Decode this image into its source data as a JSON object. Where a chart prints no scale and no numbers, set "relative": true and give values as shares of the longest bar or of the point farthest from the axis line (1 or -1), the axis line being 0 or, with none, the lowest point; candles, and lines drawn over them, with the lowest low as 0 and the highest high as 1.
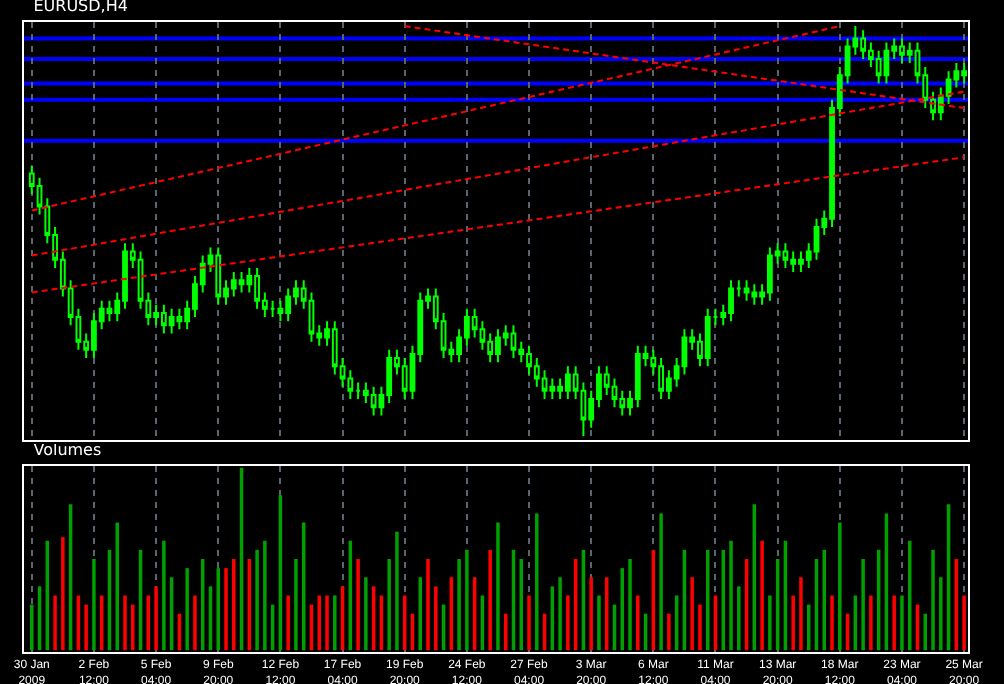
{
  "chart_data": [
    {
      "type": "candlestick",
      "title": "EURUSD,H4",
      "relative": true,
      "grid": "x",
      "tick_labels": false,
      "color": "#00ff00",
      "categories": [
        "30 Jan 2009",
        null,
        null,
        null,
        null,
        null,
        null,
        null,
        "2 Feb 12:00",
        null,
        null,
        null,
        null,
        null,
        null,
        null,
        "5 Feb 04:00",
        null,
        null,
        null,
        null,
        null,
        null,
        null,
        "9 Feb 20:00",
        null,
        null,
        null,
        null,
        null,
        null,
        null,
        "12 Feb 12:00",
        null,
        null,
        null,
        null,
        null,
        null,
        null,
        "17 Feb 04:00",
        null,
        null,
        null,
        null,
        null,
        null,
        null,
        "19 Feb 20:00",
        null,
        null,
        null,
        null,
        null,
        null,
        null,
        "24 Feb 12:00",
        null,
        null,
        null,
        null,
        null,
        null,
        null,
        "27 Feb 04:00",
        null,
        null,
        null,
        null,
        null,
        null,
        null,
        "3 Mar 20:00",
        null,
        null,
        null,
        null,
        null,
        null,
        null,
        "6 Mar 12:00",
        null,
        null,
        null,
        null,
        null,
        null,
        null,
        "11 Mar 04:00",
        null,
        null,
        null,
        null,
        null,
        null,
        null,
        "13 Mar 20:00",
        null,
        null,
        null,
        null,
        null,
        null,
        null,
        "18 Mar 12:00",
        null,
        null,
        null,
        null,
        null,
        null,
        null,
        "23 Mar 04:00",
        null,
        null,
        null,
        null,
        null,
        null,
        null,
        "25 Mar 20:00"
      ],
      "ohlc": [
        [
          0.64,
          0.66,
          0.59,
          0.61
        ],
        [
          0.61,
          0.63,
          0.54,
          0.56
        ],
        [
          0.56,
          0.58,
          0.47,
          0.49
        ],
        [
          0.49,
          0.51,
          0.41,
          0.43
        ],
        [
          0.43,
          0.45,
          0.34,
          0.36
        ],
        [
          0.36,
          0.38,
          0.27,
          0.29
        ],
        [
          0.29,
          0.31,
          0.21,
          0.23
        ],
        [
          0.23,
          0.25,
          0.19,
          0.21
        ],
        [
          0.21,
          0.3,
          0.19,
          0.28
        ],
        [
          0.28,
          0.33,
          0.26,
          0.31
        ],
        [
          0.31,
          0.33,
          0.28,
          0.3
        ],
        [
          0.3,
          0.35,
          0.28,
          0.33
        ],
        [
          0.33,
          0.47,
          0.31,
          0.45
        ],
        [
          0.45,
          0.47,
          0.41,
          0.43
        ],
        [
          0.43,
          0.45,
          0.31,
          0.33
        ],
        [
          0.33,
          0.35,
          0.27,
          0.29
        ],
        [
          0.29,
          0.32,
          0.27,
          0.3
        ],
        [
          0.3,
          0.32,
          0.25,
          0.27
        ],
        [
          0.27,
          0.31,
          0.25,
          0.29
        ],
        [
          0.29,
          0.31,
          0.26,
          0.28
        ],
        [
          0.28,
          0.33,
          0.26,
          0.31
        ],
        [
          0.31,
          0.39,
          0.29,
          0.37
        ],
        [
          0.37,
          0.44,
          0.35,
          0.42
        ],
        [
          0.42,
          0.46,
          0.4,
          0.44
        ],
        [
          0.44,
          0.46,
          0.32,
          0.34
        ],
        [
          0.34,
          0.38,
          0.32,
          0.36
        ],
        [
          0.36,
          0.4,
          0.34,
          0.38
        ],
        [
          0.38,
          0.4,
          0.35,
          0.37
        ],
        [
          0.37,
          0.41,
          0.35,
          0.39
        ],
        [
          0.39,
          0.41,
          0.31,
          0.33
        ],
        [
          0.33,
          0.35,
          0.29,
          0.31
        ],
        [
          0.31,
          0.33,
          0.29,
          0.31
        ],
        [
          0.31,
          0.33,
          0.28,
          0.3
        ],
        [
          0.3,
          0.36,
          0.28,
          0.34
        ],
        [
          0.34,
          0.38,
          0.32,
          0.36
        ],
        [
          0.36,
          0.38,
          0.31,
          0.33
        ],
        [
          0.33,
          0.35,
          0.23,
          0.25
        ],
        [
          0.25,
          0.27,
          0.22,
          0.24
        ],
        [
          0.24,
          0.28,
          0.22,
          0.26
        ],
        [
          0.26,
          0.28,
          0.15,
          0.17
        ],
        [
          0.17,
          0.19,
          0.12,
          0.14
        ],
        [
          0.14,
          0.16,
          0.09,
          0.11
        ],
        [
          0.11,
          0.13,
          0.09,
          0.11
        ],
        [
          0.11,
          0.13,
          0.08,
          0.1
        ],
        [
          0.1,
          0.12,
          0.05,
          0.07
        ],
        [
          0.07,
          0.12,
          0.05,
          0.1
        ],
        [
          0.1,
          0.21,
          0.08,
          0.19
        ],
        [
          0.19,
          0.21,
          0.15,
          0.17
        ],
        [
          0.17,
          0.19,
          0.09,
          0.11
        ],
        [
          0.11,
          0.22,
          0.09,
          0.2
        ],
        [
          0.2,
          0.35,
          0.18,
          0.33
        ],
        [
          0.33,
          0.36,
          0.31,
          0.34
        ],
        [
          0.34,
          0.36,
          0.26,
          0.28
        ],
        [
          0.28,
          0.3,
          0.19,
          0.21
        ],
        [
          0.21,
          0.23,
          0.18,
          0.2
        ],
        [
          0.2,
          0.26,
          0.18,
          0.24
        ],
        [
          0.24,
          0.31,
          0.22,
          0.29
        ],
        [
          0.29,
          0.31,
          0.24,
          0.26
        ],
        [
          0.26,
          0.28,
          0.21,
          0.23
        ],
        [
          0.23,
          0.25,
          0.18,
          0.2
        ],
        [
          0.2,
          0.26,
          0.18,
          0.24
        ],
        [
          0.24,
          0.27,
          0.22,
          0.25
        ],
        [
          0.25,
          0.27,
          0.19,
          0.21
        ],
        [
          0.21,
          0.23,
          0.18,
          0.2
        ],
        [
          0.2,
          0.22,
          0.15,
          0.17
        ],
        [
          0.17,
          0.19,
          0.12,
          0.14
        ],
        [
          0.14,
          0.16,
          0.09,
          0.11
        ],
        [
          0.11,
          0.14,
          0.09,
          0.12
        ],
        [
          0.12,
          0.14,
          0.09,
          0.11
        ],
        [
          0.11,
          0.17,
          0.09,
          0.15
        ],
        [
          0.15,
          0.17,
          0.09,
          0.11
        ],
        [
          0.11,
          0.13,
          0.0,
          0.04
        ],
        [
          0.04,
          0.11,
          0.02,
          0.09
        ],
        [
          0.09,
          0.17,
          0.07,
          0.15
        ],
        [
          0.15,
          0.17,
          0.1,
          0.12
        ],
        [
          0.12,
          0.14,
          0.07,
          0.09
        ],
        [
          0.09,
          0.11,
          0.05,
          0.07
        ],
        [
          0.07,
          0.11,
          0.05,
          0.09
        ],
        [
          0.09,
          0.22,
          0.07,
          0.2
        ],
        [
          0.2,
          0.22,
          0.17,
          0.19
        ],
        [
          0.19,
          0.21,
          0.15,
          0.17
        ],
        [
          0.17,
          0.19,
          0.09,
          0.11
        ],
        [
          0.11,
          0.16,
          0.09,
          0.14
        ],
        [
          0.14,
          0.19,
          0.12,
          0.17
        ],
        [
          0.17,
          0.26,
          0.15,
          0.24
        ],
        [
          0.24,
          0.26,
          0.21,
          0.23
        ],
        [
          0.23,
          0.25,
          0.17,
          0.19
        ],
        [
          0.19,
          0.31,
          0.17,
          0.29
        ],
        [
          0.29,
          0.31,
          0.27,
          0.29
        ],
        [
          0.29,
          0.32,
          0.27,
          0.3
        ],
        [
          0.3,
          0.38,
          0.28,
          0.36
        ],
        [
          0.36,
          0.38,
          0.34,
          0.36
        ],
        [
          0.36,
          0.38,
          0.33,
          0.35
        ],
        [
          0.35,
          0.37,
          0.32,
          0.34
        ],
        [
          0.34,
          0.37,
          0.32,
          0.35
        ],
        [
          0.35,
          0.46,
          0.33,
          0.44
        ],
        [
          0.44,
          0.47,
          0.42,
          0.45
        ],
        [
          0.45,
          0.47,
          0.41,
          0.43
        ],
        [
          0.43,
          0.45,
          0.4,
          0.42
        ],
        [
          0.42,
          0.45,
          0.4,
          0.43
        ],
        [
          0.43,
          0.47,
          0.41,
          0.45
        ],
        [
          0.45,
          0.53,
          0.43,
          0.51
        ],
        [
          0.51,
          0.55,
          0.49,
          0.53
        ],
        [
          0.53,
          0.82,
          0.51,
          0.8
        ],
        [
          0.8,
          0.9,
          0.78,
          0.88
        ],
        [
          0.88,
          0.97,
          0.86,
          0.95
        ],
        [
          0.95,
          1.0,
          0.93,
          0.97
        ],
        [
          0.97,
          0.99,
          0.92,
          0.94
        ],
        [
          0.94,
          0.96,
          0.9,
          0.92
        ],
        [
          0.92,
          0.94,
          0.86,
          0.88
        ],
        [
          0.88,
          0.96,
          0.86,
          0.94
        ],
        [
          0.94,
          0.97,
          0.92,
          0.95
        ],
        [
          0.95,
          0.97,
          0.91,
          0.93
        ],
        [
          0.93,
          0.96,
          0.91,
          0.94
        ],
        [
          0.94,
          0.96,
          0.86,
          0.88
        ],
        [
          0.88,
          0.9,
          0.8,
          0.82
        ],
        [
          0.82,
          0.84,
          0.77,
          0.79
        ],
        [
          0.79,
          0.85,
          0.77,
          0.83
        ],
        [
          0.83,
          0.89,
          0.81,
          0.87
        ],
        [
          0.87,
          0.91,
          0.85,
          0.89
        ],
        [
          0.89,
          0.91,
          0.86,
          0.88
        ]
      ],
      "series": [
        {
          "type": "line",
          "color": "#ff0000",
          "line_style": "dashed",
          "x": [
            "19 Feb 20:00",
            "25 Mar 20:00"
          ],
          "values": [
            1.0,
            0.8
          ]
        },
        {
          "type": "line",
          "color": "#ff0000",
          "line_style": "dashed",
          "x": [
            "30 Jan 2009",
            "18 Mar 12:00"
          ],
          "values": [
            0.55,
            1.0
          ]
        },
        {
          "type": "line",
          "color": "#ff0000",
          "line_style": "dashed",
          "x": [
            "30 Jan 2009",
            "25 Mar 20:00"
          ],
          "values": [
            0.35,
            0.68
          ]
        },
        {
          "type": "line",
          "color": "#ff0000",
          "line_style": "dashed",
          "x": [
            "30 Jan 2009",
            "25 Mar 20:00"
          ],
          "values": [
            0.44,
            0.84
          ]
        }
      ],
      "ref_lines": [
        {
          "axis": "y",
          "value": 0.97,
          "color": "#0000ff"
        },
        {
          "axis": "y",
          "value": 0.92,
          "color": "#0000ff"
        },
        {
          "axis": "y",
          "value": 0.86,
          "color": "#0000ff"
        },
        {
          "axis": "y",
          "value": 0.82,
          "color": "#0000ff"
        },
        {
          "axis": "y",
          "value": 0.72,
          "color": "#0000ff"
        }
      ]
    },
    {
      "type": "bar",
      "title": "Volumes",
      "relative": true,
      "grid": "x",
      "categories": [
        "30 Jan 2009",
        null,
        null,
        null,
        null,
        null,
        null,
        null,
        "2 Feb 12:00",
        null,
        null,
        null,
        null,
        null,
        null,
        null,
        "5 Feb 04:00",
        null,
        null,
        null,
        null,
        null,
        null,
        null,
        "9 Feb 20:00",
        null,
        null,
        null,
        null,
        null,
        null,
        null,
        "12 Feb 12:00",
        null,
        null,
        null,
        null,
        null,
        null,
        null,
        "17 Feb 04:00",
        null,
        null,
        null,
        null,
        null,
        null,
        null,
        "19 Feb 20:00",
        null,
        null,
        null,
        null,
        null,
        null,
        null,
        "24 Feb 12:00",
        null,
        null,
        null,
        null,
        null,
        null,
        null,
        "27 Feb 04:00",
        null,
        null,
        null,
        null,
        null,
        null,
        null,
        "3 Mar 20:00",
        null,
        null,
        null,
        null,
        null,
        null,
        null,
        "6 Mar 12:00",
        null,
        null,
        null,
        null,
        null,
        null,
        null,
        "11 Mar 04:00",
        null,
        null,
        null,
        null,
        null,
        null,
        null,
        "13 Mar 20:00",
        null,
        null,
        null,
        null,
        null,
        null,
        null,
        "18 Mar 12:00",
        null,
        null,
        null,
        null,
        null,
        null,
        null,
        "23 Mar 04:00",
        null,
        null,
        null,
        null,
        null,
        null,
        null,
        "25 Mar 20:00"
      ],
      "values": [
        0.25,
        0.35,
        0.6,
        0.3,
        0.62,
        0.8,
        0.3,
        0.25,
        0.5,
        0.3,
        0.55,
        0.7,
        0.3,
        0.25,
        0.55,
        0.3,
        0.35,
        0.6,
        0.4,
        0.2,
        0.45,
        0.3,
        0.5,
        0.35,
        0.45,
        0.45,
        0.5,
        1,
        0.5,
        0.55,
        0.6,
        0.25,
        0.85,
        0.3,
        0.5,
        0.7,
        0.25,
        0.3,
        0.3,
        0.3,
        0.35,
        0.6,
        0.5,
        0.4,
        0.35,
        0.3,
        0.5,
        0.65,
        0.3,
        0.2,
        0.4,
        0.5,
        0.35,
        0.25,
        0.4,
        0.5,
        0.55,
        0.4,
        0.3,
        0.55,
        0.7,
        0.2,
        0.55,
        0.5,
        0.3,
        0.75,
        0.2,
        0.35,
        0.4,
        0.3,
        0.5,
        0.55,
        0.4,
        0.3,
        0.4,
        0.25,
        0.45,
        0.5,
        0.3,
        0.2,
        0.55,
        0.75,
        0.2,
        0.3,
        0.55,
        0.4,
        0.25,
        0.55,
        0.3,
        0.55,
        0.6,
        0.35,
        0.5,
        0.8,
        0.6,
        0.3,
        0.5,
        0.6,
        0.3,
        0.4,
        0.25,
        0.5,
        0.55,
        0.3,
        0.7,
        0.2,
        0.3,
        0.5,
        0.3,
        0.55,
        0.75,
        0.3,
        0.3,
        0.6,
        0.25,
        0.2,
        0.55,
        0.4,
        0.8,
        0.5,
        0.3
      ],
      "colors": [
        "#00a000",
        "#00a000",
        "#00a000",
        "#ff0000",
        "#ff0000",
        "#00a000",
        "#ff0000",
        "#ff0000",
        "#00a000",
        "#ff0000",
        "#00a000",
        "#00a000",
        "#ff0000",
        "#ff0000",
        "#00a000",
        "#ff0000",
        "#ff0000",
        "#00a000",
        "#00a000",
        "#ff0000",
        "#00a000",
        "#ff0000",
        "#00a000",
        "#00a000",
        "#00a000",
        "#ff0000",
        "#ff0000",
        "#00a000",
        "#ff0000",
        "#00a000",
        "#00a000",
        "#00a000",
        "#00a000",
        "#ff0000",
        "#00a000",
        "#00a000",
        "#ff0000",
        "#ff0000",
        "#ff0000",
        "#00a000",
        "#ff0000",
        "#00a000",
        "#ff0000",
        "#00a000",
        "#ff0000",
        "#ff0000",
        "#00a000",
        "#00a000",
        "#ff0000",
        "#ff0000",
        "#00a000",
        "#ff0000",
        "#ff0000",
        "#00a000",
        "#ff0000",
        "#00a000",
        "#00a000",
        "#ff0000",
        "#00a000",
        "#ff0000",
        "#00a000",
        "#ff0000",
        "#00a000",
        "#00a000",
        "#ff0000",
        "#00a000",
        "#ff0000",
        "#00a000",
        "#00a000",
        "#ff0000",
        "#ff0000",
        "#00a000",
        "#ff0000",
        "#00a000",
        "#ff0000",
        "#00a000",
        "#00a000",
        "#00a000",
        "#ff0000",
        "#00a000",
        "#ff0000",
        "#00a000",
        "#ff0000",
        "#00a000",
        "#00a000",
        "#ff0000",
        "#ff0000",
        "#00a000",
        "#ff0000",
        "#00a000",
        "#00a000",
        "#00a000",
        "#ff0000",
        "#00a000",
        "#ff0000",
        "#00a000",
        "#00a000",
        "#00a000",
        "#ff0000",
        "#ff0000",
        "#00a000",
        "#00a000",
        "#00a000",
        "#ff0000",
        "#00a000",
        "#ff0000",
        "#00a000",
        "#00a000",
        "#ff0000",
        "#00a000",
        "#00a000",
        "#ff0000",
        "#00a000",
        "#00a000",
        "#ff0000",
        "#00a000",
        "#00a000",
        "#00a000",
        "#00a000",
        "#ff0000",
        "#ff0000"
      ]
    }
  ]
}
